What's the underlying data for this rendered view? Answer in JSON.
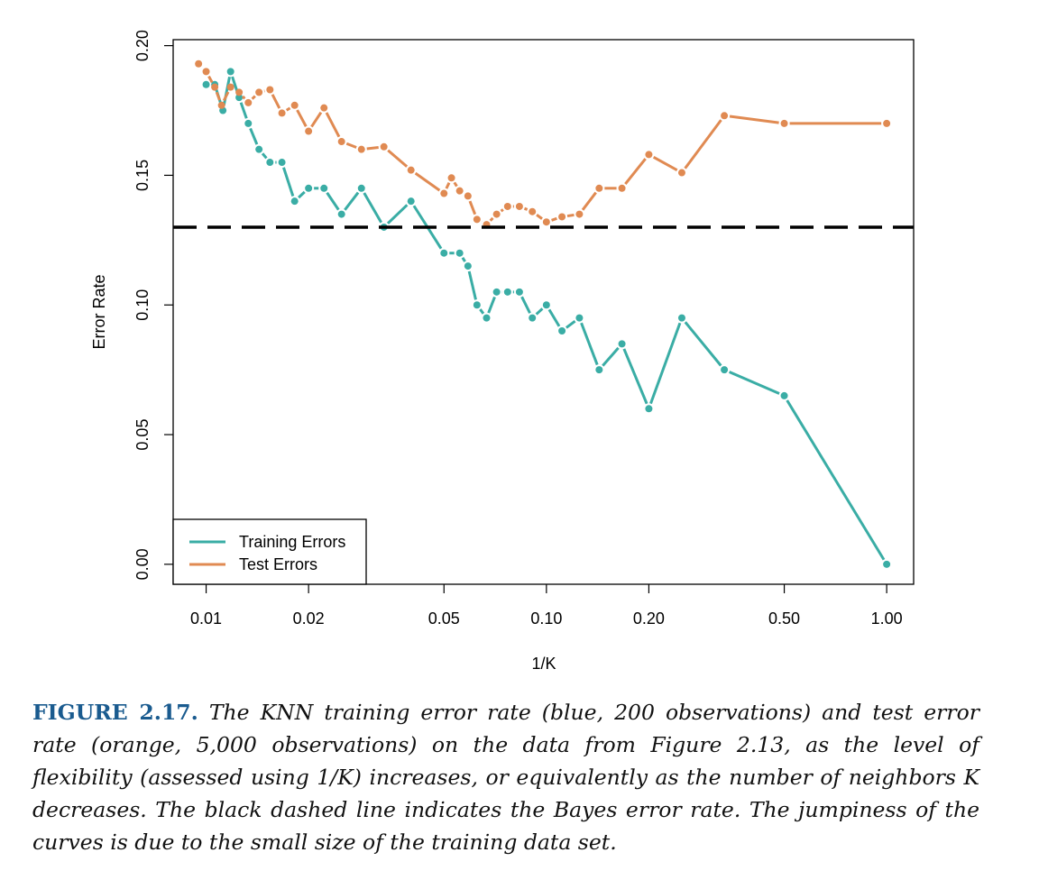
{
  "chart_data": {
    "type": "line",
    "xlabel": "1/K",
    "ylabel": "Error Rate",
    "xscale": "log",
    "xlim": [
      0.008,
      1.2
    ],
    "ylim": [
      -0.0077,
      0.2023
    ],
    "xticks": [
      0.01,
      0.02,
      0.05,
      0.1,
      0.2,
      0.5,
      1.0
    ],
    "xtick_labels": [
      "0.01",
      "0.02",
      "0.05",
      "0.10",
      "0.20",
      "0.50",
      "1.00"
    ],
    "yticks": [
      0.0,
      0.05,
      0.1,
      0.15,
      0.2
    ],
    "ytick_labels": [
      "0.00",
      "0.05",
      "0.10",
      "0.15",
      "0.20"
    ],
    "legend_position": "bottom-left",
    "grid": false,
    "series": [
      {
        "name": "Training Errors",
        "color": "#3aada5",
        "x": [
          0.01,
          0.0106,
          0.0112,
          0.0118,
          0.0125,
          0.0133,
          0.0143,
          0.0154,
          0.0167,
          0.0182,
          0.02,
          0.0222,
          0.025,
          0.0286,
          0.0333,
          0.04,
          0.05,
          0.0556,
          0.0588,
          0.0625,
          0.0667,
          0.0714,
          0.0769,
          0.0833,
          0.0909,
          0.1,
          0.1111,
          0.125,
          0.1429,
          0.1667,
          0.2,
          0.25,
          0.3333,
          0.5,
          1.0
        ],
        "y": [
          0.185,
          0.185,
          0.175,
          0.19,
          0.18,
          0.17,
          0.16,
          0.155,
          0.155,
          0.14,
          0.145,
          0.145,
          0.135,
          0.145,
          0.13,
          0.14,
          0.12,
          0.12,
          0.115,
          0.1,
          0.095,
          0.105,
          0.105,
          0.105,
          0.095,
          0.1,
          0.09,
          0.095,
          0.075,
          0.085,
          0.06,
          0.095,
          0.075,
          0.065,
          0.0
        ]
      },
      {
        "name": "Test Errors",
        "color": "#e08a52",
        "x": [
          0.0095,
          0.01,
          0.0106,
          0.0111,
          0.0118,
          0.0125,
          0.0133,
          0.0143,
          0.0154,
          0.0167,
          0.0182,
          0.02,
          0.0222,
          0.025,
          0.0286,
          0.0333,
          0.04,
          0.05,
          0.0526,
          0.0556,
          0.0588,
          0.0625,
          0.0667,
          0.0714,
          0.0769,
          0.0833,
          0.0909,
          0.1,
          0.1111,
          0.125,
          0.1429,
          0.1667,
          0.2,
          0.25,
          0.3333,
          0.5,
          1.0
        ],
        "y": [
          0.193,
          0.19,
          0.184,
          0.177,
          0.184,
          0.182,
          0.178,
          0.182,
          0.183,
          0.174,
          0.177,
          0.167,
          0.176,
          0.163,
          0.16,
          0.161,
          0.152,
          0.143,
          0.149,
          0.144,
          0.142,
          0.133,
          0.131,
          0.135,
          0.138,
          0.138,
          0.136,
          0.132,
          0.134,
          0.135,
          0.145,
          0.145,
          0.158,
          0.151,
          0.173,
          0.17,
          0.17
        ]
      }
    ],
    "reference_line": {
      "y": 0.13,
      "color": "#000000",
      "style": "dashed"
    }
  },
  "caption": {
    "label": "FIGURE 2.17.",
    "text": " The KNN training error rate (blue, 200 observations) and test error rate (orange, 5,000 observations) on the data from Figure 2.13, as the level of flexibility (assessed using 1/K) increases, or equivalently as the number of neighbors K decreases. The black dashed line indicates the Bayes error rate. The jumpiness of the curves is due to the small size of the training data set."
  }
}
